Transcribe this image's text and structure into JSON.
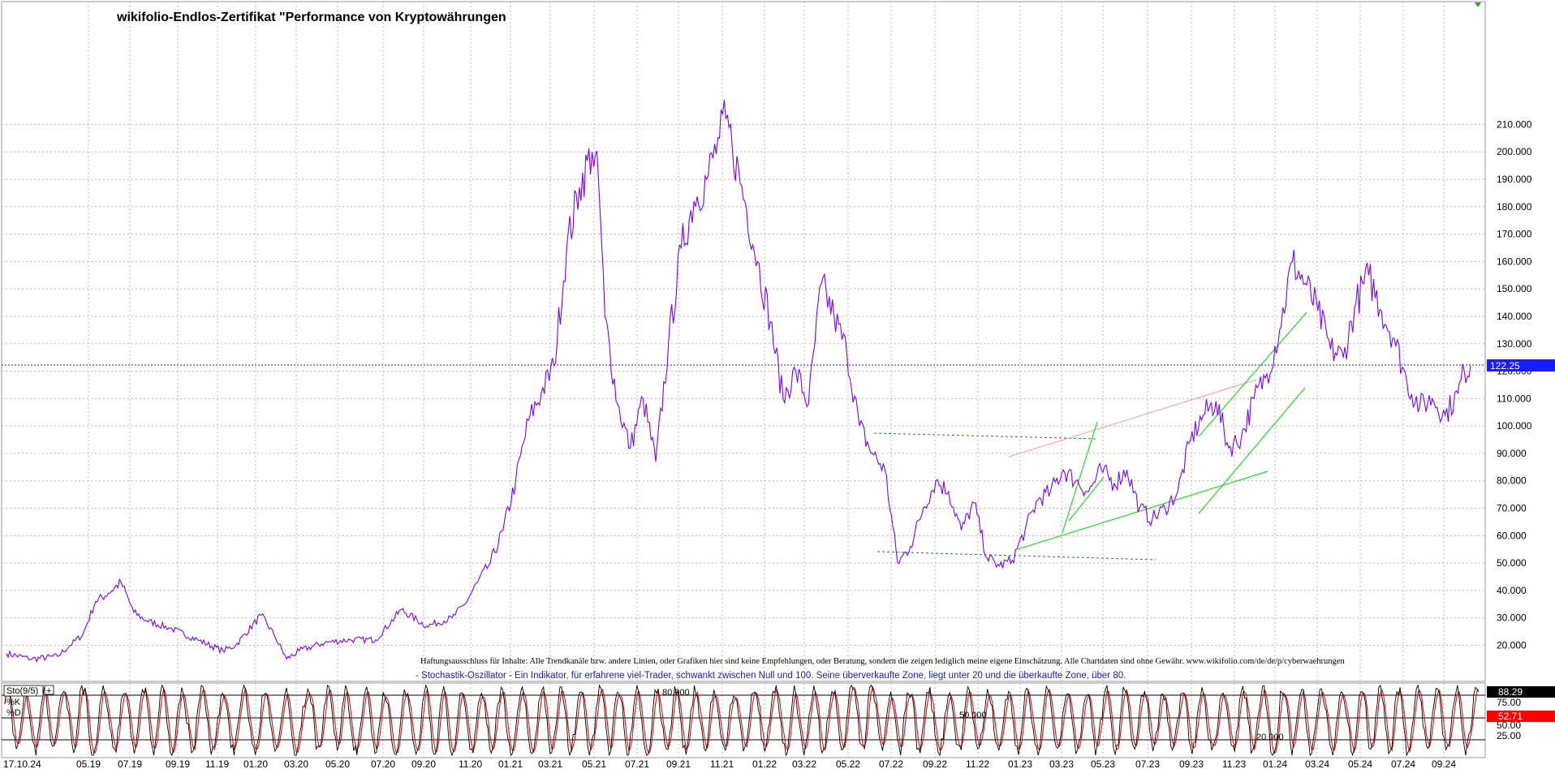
{
  "title": "wikifolio-Endlos-Zertifikat \"Performance von Kryptowährungen",
  "disclaimer": "Haftungsausschluss für Inhalte: Alle Trendkanäle bzw. andere Linien, oder Grafiken hier sind keine Empfehlungen, oder Beratung, sondern die zeigen lediglich meine eigene Einschätzung. Alle Chartdaten sind ohne Gewähr.  www.wikifolio.com/de/de/p/cyberwaehrungen",
  "oscillator_note": "- Stochastik-Oszillator - Ein Indikator, für erfahrene viel-Trader, schwankt zwischen Null und 100. Seine überverkaufte Zone, liegt unter 20 und die überkaufte Zone, über 80.",
  "last_price_badge": "122.25",
  "indicator": {
    "name": "Sto(9/5)",
    "k_label": "%K",
    "d_label": "%D",
    "k_value": "88.29",
    "d_value": "52.71",
    "level_labels": [
      "80.000",
      "50.000",
      "20.000"
    ],
    "right_ticks": [
      "75.00",
      "50.00",
      "25.00"
    ]
  },
  "colors": {
    "price_line": "#7b00ff",
    "last_price": "#1a1aff",
    "grid": "#b8b8b8",
    "k_line": "#000000",
    "d_line": "#e01010",
    "trend_green": "#22dd22",
    "trend_pink": "#ff9999",
    "channel_dashed": "#1a8a1a",
    "badge_k_bg": "#000000",
    "badge_d_bg": "#ff0000"
  },
  "chart_data": {
    "type": "line",
    "title": "wikifolio-Endlos-Zertifikat \"Performance von Kryptowährungen",
    "x_tick_labels": [
      "17.10.24",
      "05.19",
      "07.19",
      "09.19",
      "11.19",
      "01.20",
      "03.20",
      "05.20",
      "07.20",
      "09.20",
      "11.20",
      "01.21",
      "03.21",
      "05.21",
      "07.21",
      "09.21",
      "11.21",
      "01.22",
      "03.22",
      "05.22",
      "07.22",
      "09.22",
      "11.22",
      "01.23",
      "03.23",
      "05.23",
      "07.23",
      "09.23",
      "11.23",
      "01.24",
      "03.24",
      "05.24",
      "07.24",
      "09.24"
    ],
    "y_tick_labels": [
      "20.000",
      "30.000",
      "40.000",
      "50.000",
      "60.000",
      "70.000",
      "80.000",
      "90.000",
      "100.000",
      "110.000",
      "120.000",
      "130.000",
      "140.000",
      "150.000",
      "160.000",
      "170.000",
      "180.000",
      "190.000",
      "200.000",
      "210.000"
    ],
    "ylim": [
      15,
      213
    ],
    "grid": true,
    "series": [
      {
        "values": [
          [
            0,
            17
          ],
          [
            4,
            15
          ],
          [
            8,
            16
          ],
          [
            10,
            20
          ],
          [
            12,
            24
          ],
          [
            14,
            36
          ],
          [
            16,
            39
          ],
          [
            18,
            43
          ],
          [
            20,
            32
          ],
          [
            22,
            29
          ],
          [
            26,
            26
          ],
          [
            30,
            22
          ],
          [
            34,
            18
          ],
          [
            36,
            20
          ],
          [
            40,
            31
          ],
          [
            42,
            24
          ],
          [
            44,
            15
          ],
          [
            46,
            18
          ],
          [
            50,
            21
          ],
          [
            54,
            22
          ],
          [
            58,
            22
          ],
          [
            62,
            33
          ],
          [
            66,
            27
          ],
          [
            70,
            30
          ],
          [
            72,
            35
          ],
          [
            74,
            43
          ],
          [
            76,
            50
          ],
          [
            78,
            62
          ],
          [
            80,
            80
          ],
          [
            82,
            102
          ],
          [
            84,
            112
          ],
          [
            86,
            122
          ],
          [
            88,
            165
          ],
          [
            90,
            187
          ],
          [
            92,
            200
          ],
          [
            93,
            190
          ],
          [
            94,
            140
          ],
          [
            96,
            108
          ],
          [
            98,
            92
          ],
          [
            100,
            110
          ],
          [
            102,
            87
          ],
          [
            104,
            130
          ],
          [
            106,
            165
          ],
          [
            108,
            182
          ],
          [
            110,
            190
          ],
          [
            112,
            205
          ],
          [
            113,
            212
          ],
          [
            114,
            202
          ],
          [
            116,
            182
          ],
          [
            118,
            160
          ],
          [
            120,
            138
          ],
          [
            122,
            110
          ],
          [
            124,
            120
          ],
          [
            126,
            108
          ],
          [
            128,
            152
          ],
          [
            130,
            140
          ],
          [
            132,
            127
          ],
          [
            134,
            100
          ],
          [
            136,
            90
          ],
          [
            138,
            84
          ],
          [
            140,
            50
          ],
          [
            142,
            56
          ],
          [
            144,
            70
          ],
          [
            146,
            80
          ],
          [
            148,
            76
          ],
          [
            150,
            62
          ],
          [
            152,
            72
          ],
          [
            154,
            52
          ],
          [
            156,
            49
          ],
          [
            158,
            51
          ],
          [
            160,
            62
          ],
          [
            162,
            73
          ],
          [
            164,
            76
          ],
          [
            166,
            84
          ],
          [
            168,
            80
          ],
          [
            170,
            76
          ],
          [
            172,
            84
          ],
          [
            174,
            79
          ],
          [
            176,
            84
          ],
          [
            178,
            70
          ],
          [
            180,
            66
          ],
          [
            182,
            70
          ],
          [
            184,
            76
          ],
          [
            186,
            95
          ],
          [
            188,
            104
          ],
          [
            190,
            109
          ],
          [
            192,
            92
          ],
          [
            194,
            96
          ],
          [
            196,
            110
          ],
          [
            198,
            119
          ],
          [
            200,
            135
          ],
          [
            202,
            160
          ],
          [
            204,
            152
          ],
          [
            206,
            142
          ],
          [
            208,
            128
          ],
          [
            210,
            125
          ],
          [
            212,
            145
          ],
          [
            214,
            155
          ],
          [
            216,
            142
          ],
          [
            218,
            132
          ],
          [
            220,
            116
          ],
          [
            222,
            107
          ],
          [
            224,
            110
          ],
          [
            226,
            104
          ],
          [
            228,
            112
          ],
          [
            229,
            120
          ],
          [
            230,
            122
          ]
        ]
      }
    ],
    "last_value": 122.25
  }
}
